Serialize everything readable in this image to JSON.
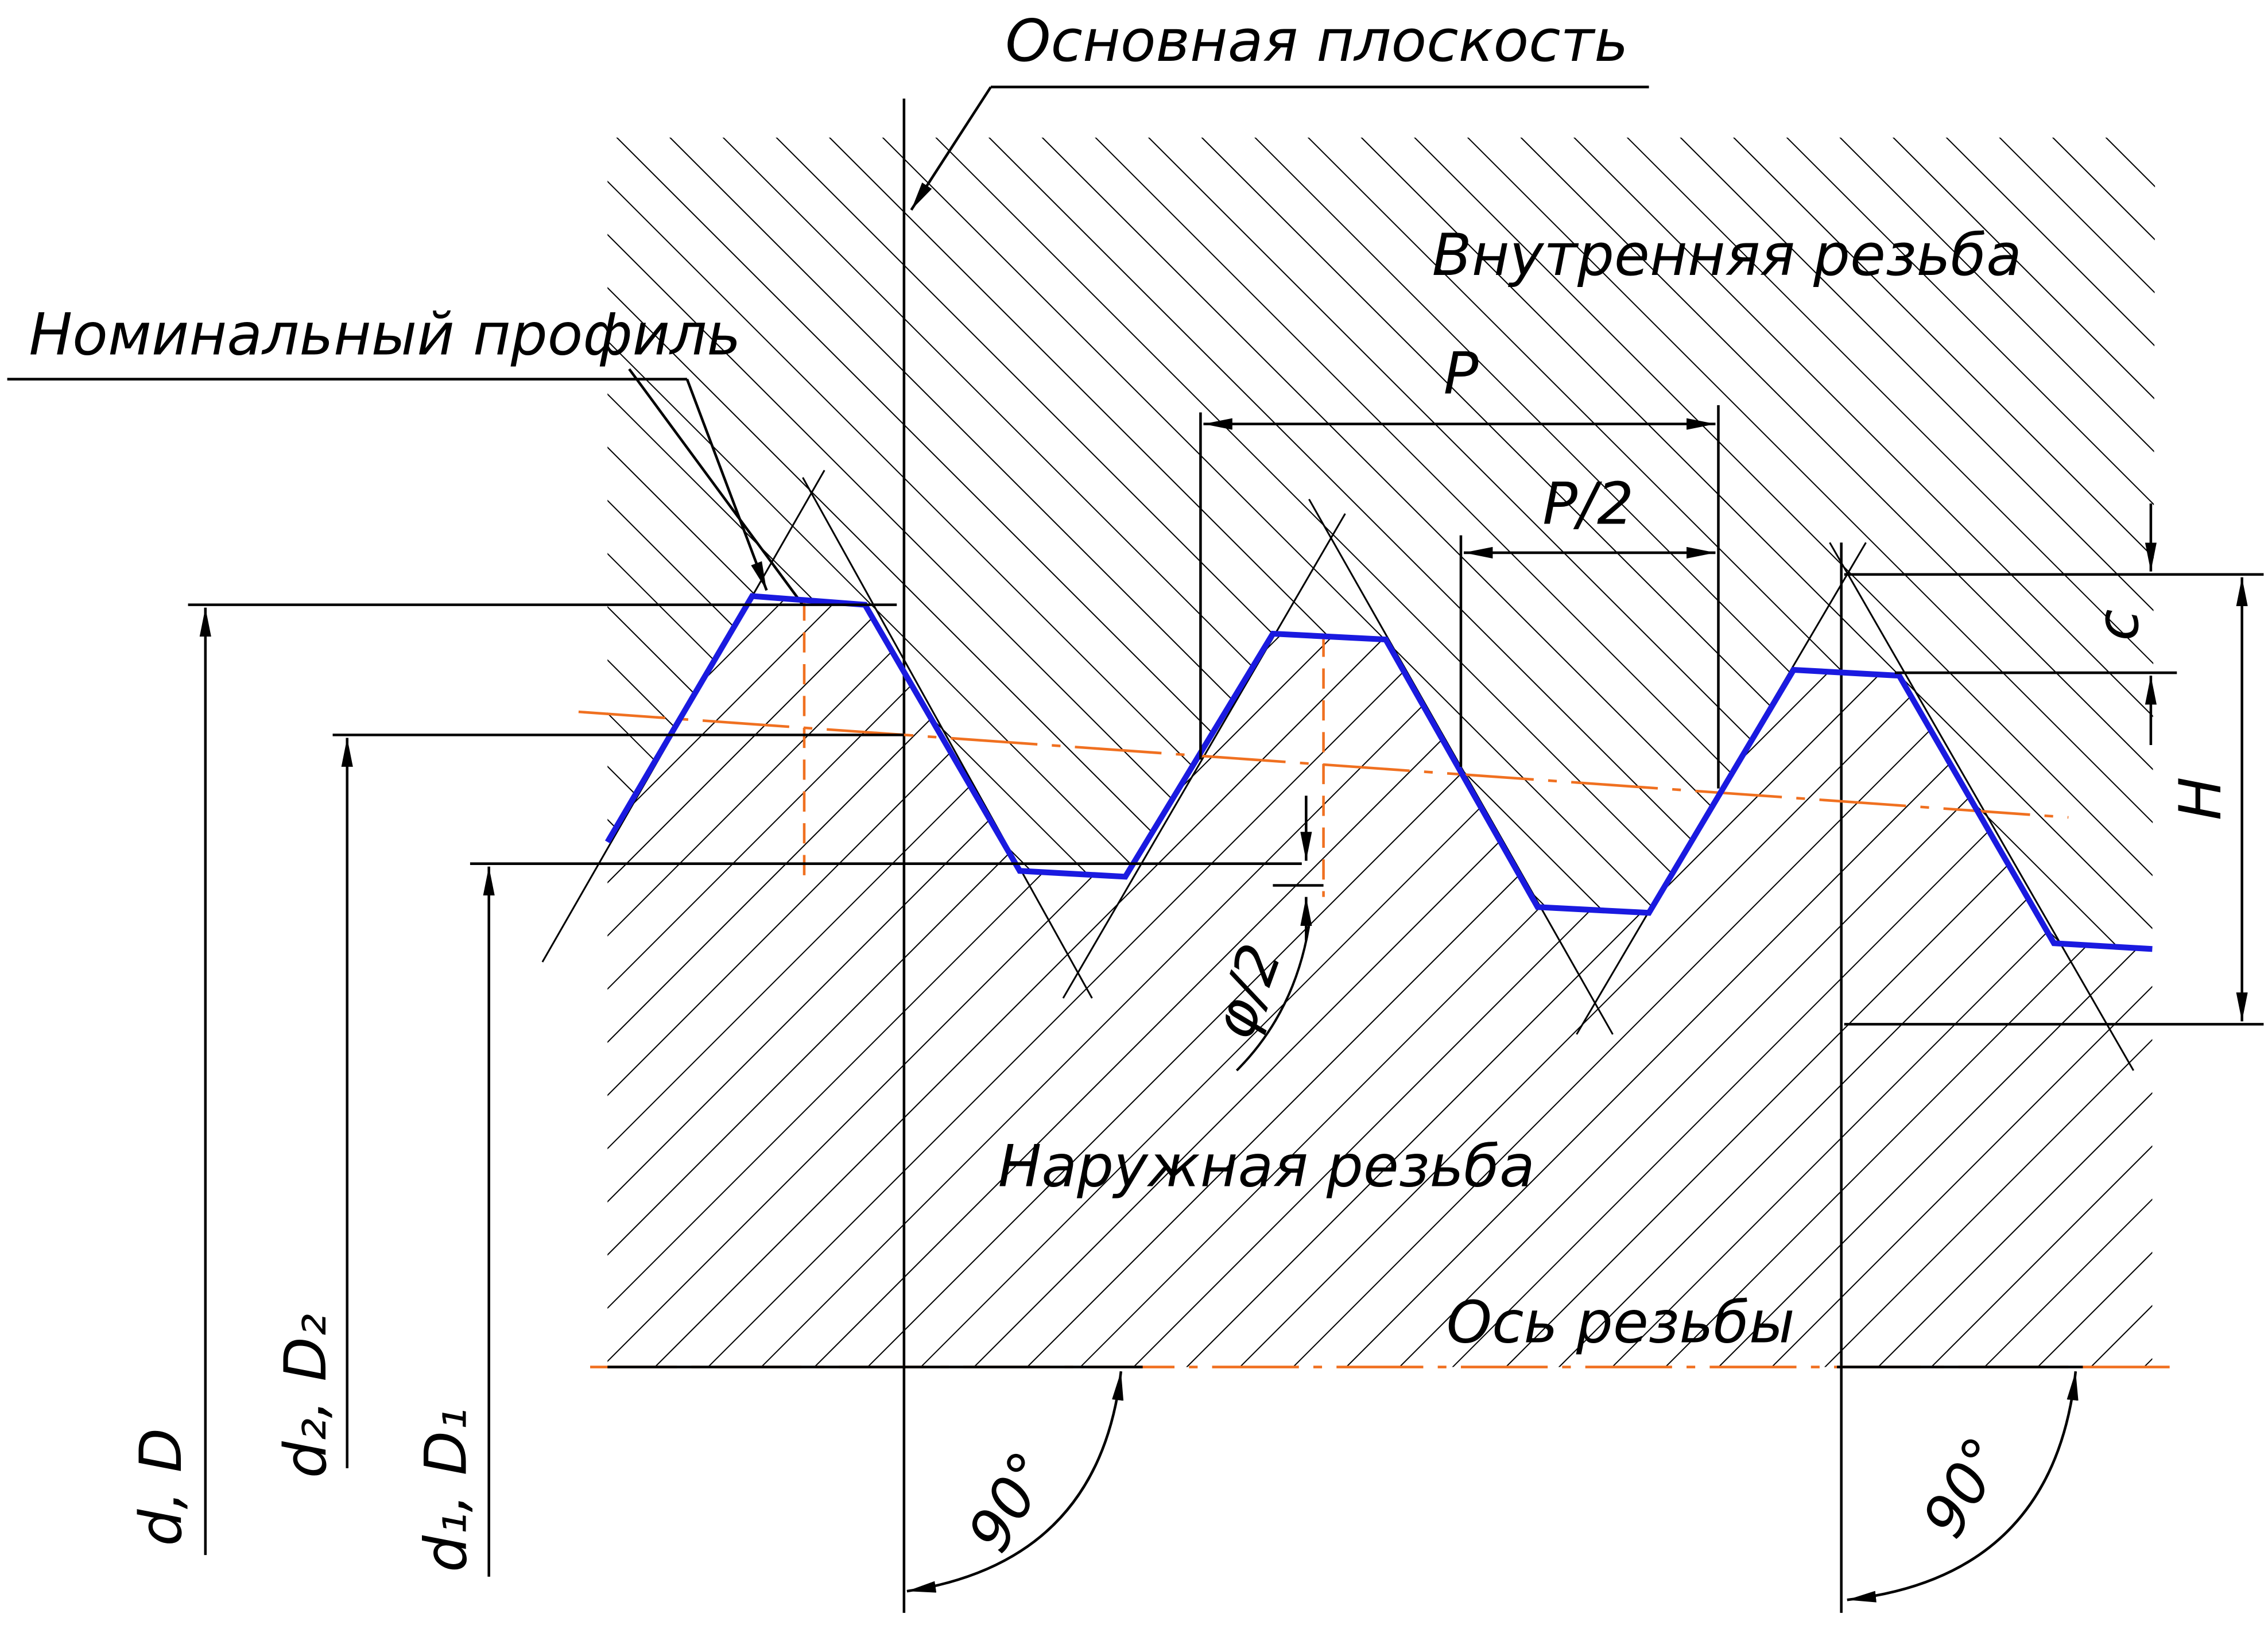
{
  "labels": {
    "basic_plane": "Основная плоскость",
    "internal_thread": "Внутренняя резьба",
    "nominal_profile": "Номинальный профиль",
    "pitch": "P",
    "half_pitch": "P/2",
    "c": "c",
    "H": "H",
    "half_angle": "φ/2",
    "external_thread": "Наружная резьба",
    "thread_axis": "Ось резьбы",
    "angle_left": "90°",
    "angle_right": "90°",
    "major_diameter": "d, D",
    "pitch_diameter": "d₂, D₂",
    "minor_diameter": "d₁, D₁"
  }
}
